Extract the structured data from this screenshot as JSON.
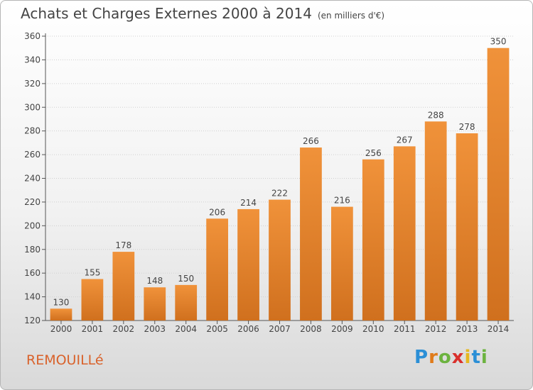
{
  "header": {
    "title": "Achats et Charges Externes 2000 à 2014",
    "subtitle": "(en milliers d'€)"
  },
  "footer": {
    "commune": "REMOUILLé",
    "logo": {
      "letters": [
        "P",
        "r",
        "o",
        "x",
        "i",
        "t",
        "i"
      ],
      "colors": [
        "#2b8fd6",
        "#e07b1a",
        "#6cb33f",
        "#d9302c",
        "#e6b820",
        "#2b8fd6",
        "#6cb33f"
      ]
    }
  },
  "chart_data": {
    "type": "bar",
    "categories": [
      "2000",
      "2001",
      "2002",
      "2003",
      "2004",
      "2005",
      "2006",
      "2007",
      "2008",
      "2009",
      "2010",
      "2011",
      "2012",
      "2013",
      "2014"
    ],
    "values": [
      130,
      155,
      178,
      148,
      150,
      206,
      214,
      222,
      266,
      216,
      256,
      267,
      288,
      278,
      350
    ],
    "title": "Achats et Charges Externes 2000 à 2014",
    "subtitle": "(en milliers d'€)",
    "xlabel": "",
    "ylabel": "",
    "ylim": [
      120,
      360
    ],
    "yticks": [
      120,
      140,
      160,
      180,
      200,
      220,
      240,
      260,
      280,
      300,
      320,
      340,
      360
    ],
    "grid": true,
    "bar_color": "#f0923a",
    "bar_dark_color": "#d0701e"
  }
}
